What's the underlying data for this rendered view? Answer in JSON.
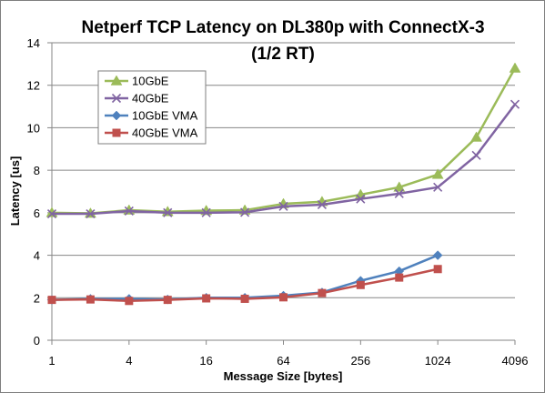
{
  "chart_data": {
    "type": "line",
    "title_line1": "Netperf TCP Latency on DL380p with ConnectX-3",
    "title_line2": "(1/2 RT)",
    "xlabel": "Message Size [bytes]",
    "ylabel": "Latency [us]",
    "x_scale": "log2",
    "x": [
      1,
      2,
      4,
      8,
      16,
      32,
      64,
      128,
      256,
      512,
      1024,
      2048,
      4096
    ],
    "x_ticks": [
      1,
      4,
      16,
      64,
      256,
      1024,
      4096
    ],
    "x_tick_labels": [
      "1",
      "4",
      "16",
      "64",
      "256",
      "1024",
      "4096"
    ],
    "ylim": [
      0,
      14
    ],
    "y_ticks": [
      0,
      2,
      4,
      6,
      8,
      10,
      12,
      14
    ],
    "y_tick_labels": [
      "0",
      "2",
      "4",
      "6",
      "8",
      "10",
      "12",
      "14"
    ],
    "grid": "horizontal",
    "legend_position": "top-left",
    "series": [
      {
        "name": "10GbE",
        "color": "#9BBB59",
        "marker": "triangle",
        "values": [
          6.0,
          5.97,
          6.12,
          6.05,
          6.1,
          6.12,
          6.42,
          6.52,
          6.85,
          7.2,
          7.8,
          9.55,
          12.8
        ]
      },
      {
        "name": "40GbE",
        "color": "#8064A2",
        "marker": "x",
        "values": [
          5.95,
          5.95,
          6.08,
          6.0,
          6.0,
          6.02,
          6.3,
          6.38,
          6.65,
          6.9,
          7.2,
          8.7,
          11.1
        ]
      },
      {
        "name": "10GbE VMA",
        "color": "#4F81BD",
        "marker": "diamond",
        "values": [
          1.9,
          1.95,
          1.95,
          1.92,
          2.0,
          2.0,
          2.1,
          2.25,
          2.8,
          3.25,
          4.0,
          null,
          null
        ]
      },
      {
        "name": "40GbE VMA",
        "color": "#C0504D",
        "marker": "square",
        "values": [
          1.9,
          1.92,
          1.85,
          1.9,
          1.97,
          1.95,
          2.02,
          2.22,
          2.6,
          2.95,
          3.35,
          null,
          null
        ]
      }
    ]
  }
}
